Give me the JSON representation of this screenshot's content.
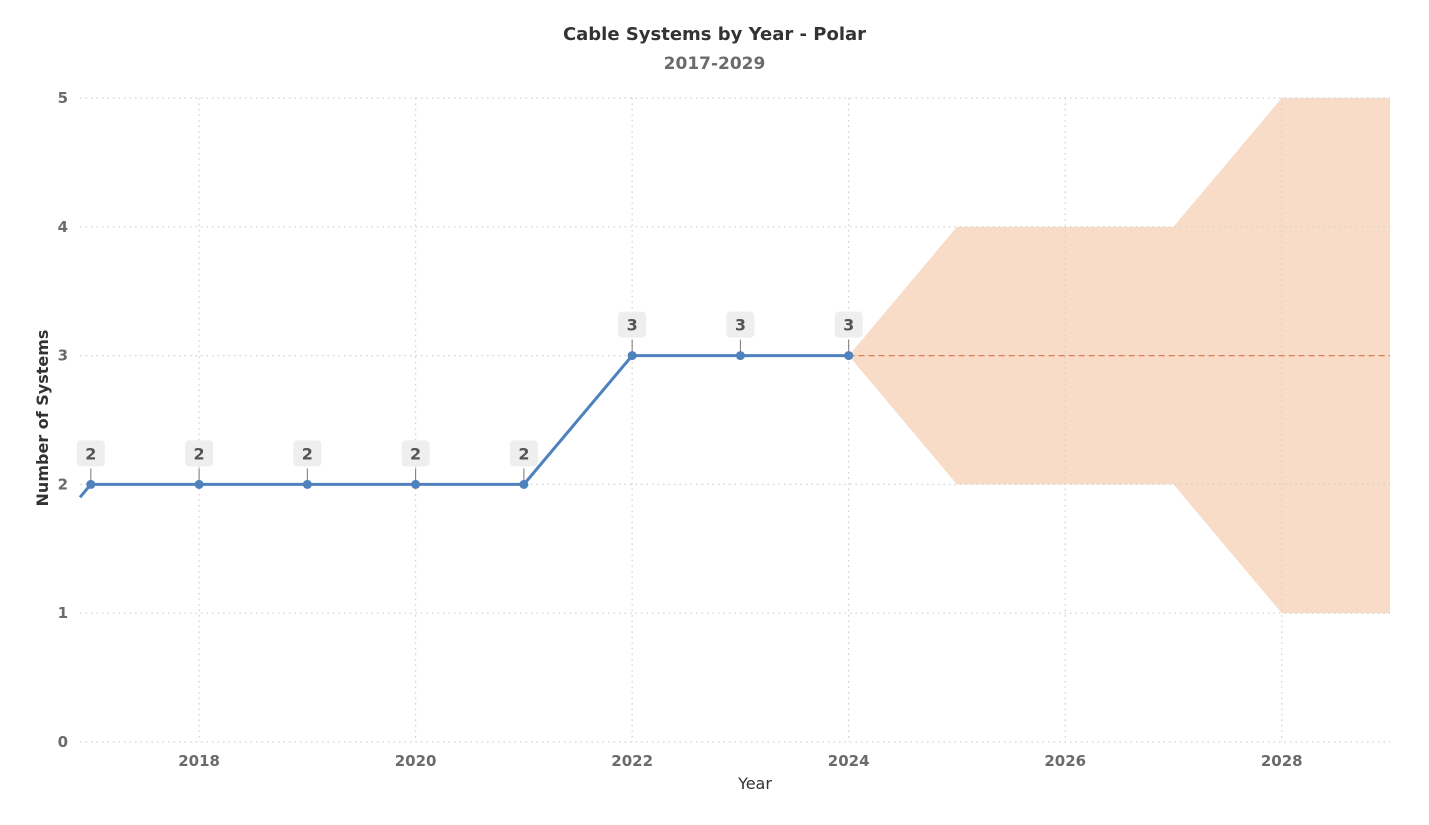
{
  "chart_data": {
    "type": "line",
    "title": "Cable Systems by Year - Polar",
    "subtitle": "2017-2029",
    "xlabel": "Year",
    "ylabel": "Number of Systems",
    "xlim": [
      2016.9,
      2029.0
    ],
    "ylim": [
      0,
      5
    ],
    "x_ticks": [
      2018,
      2020,
      2022,
      2024,
      2026,
      2028
    ],
    "y_ticks": [
      0,
      1,
      2,
      3,
      4,
      5
    ],
    "grid": true,
    "legend": "none",
    "series": [
      {
        "x": [
          2016.9,
          2017,
          2018,
          2019,
          2020,
          2021,
          2022,
          2023,
          2024
        ],
        "values": [
          1.9,
          2,
          2,
          2,
          2,
          2,
          3,
          3,
          3
        ],
        "data_labels": [
          null,
          "2",
          "2",
          "2",
          "2",
          "2",
          "3",
          "3",
          "3"
        ],
        "color": "#4f81bd"
      }
    ],
    "forecast": {
      "x": [
        2024,
        2029
      ],
      "values": [
        3,
        3
      ],
      "color": "#e07b50",
      "style": "dashed"
    },
    "forecast_band": {
      "x": [
        2024,
        2025,
        2027,
        2028,
        2029
      ],
      "lower": [
        3,
        2,
        2,
        1,
        1
      ],
      "upper": [
        3,
        4,
        4,
        5,
        5
      ],
      "color": "#f9dcc8"
    }
  }
}
